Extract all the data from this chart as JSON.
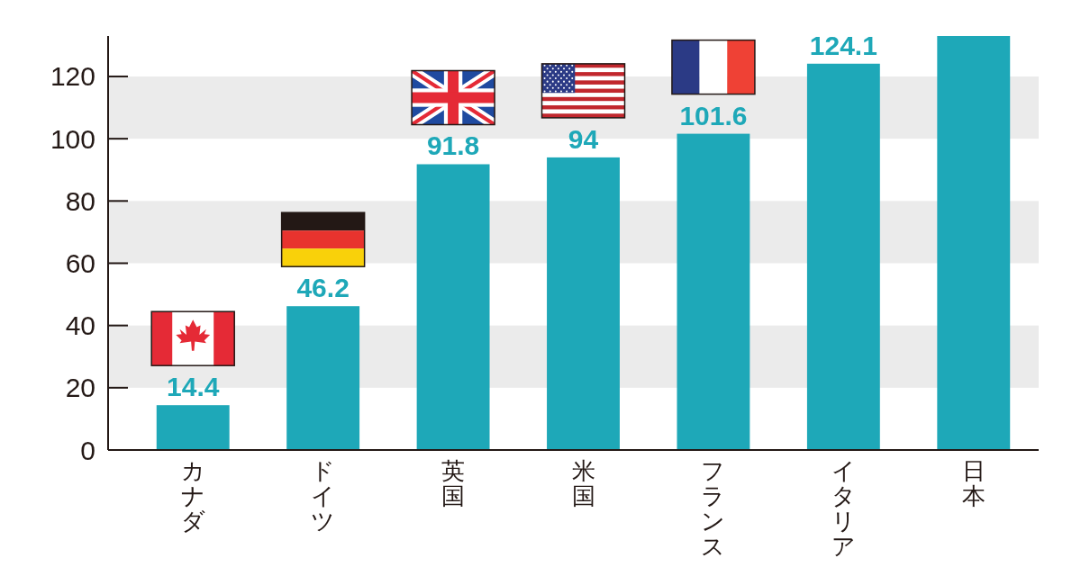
{
  "chart_data": {
    "type": "bar",
    "categories": [
      "カナダ",
      "ドイツ",
      "英国",
      "米国",
      "フランス",
      "イタリア",
      "日本"
    ],
    "values": [
      14.4,
      46.2,
      91.8,
      94,
      101.6,
      124.1,
      133
    ],
    "color": "#1ea8b8",
    "value_labels": [
      "14.4",
      "46.2",
      "91.8",
      "94",
      "101.6",
      "124.1",
      null
    ],
    "ylim": [
      0,
      133
    ],
    "yticks": [
      0,
      20,
      40,
      60,
      80,
      100,
      120
    ],
    "bands": [
      {
        "axis": "y",
        "from": 20,
        "to": 40,
        "color": "#ebebeb"
      },
      {
        "axis": "y",
        "from": 60,
        "to": 80,
        "color": "#ebebeb"
      },
      {
        "axis": "y",
        "from": 100,
        "to": 120,
        "color": "#ebebeb"
      }
    ]
  }
}
